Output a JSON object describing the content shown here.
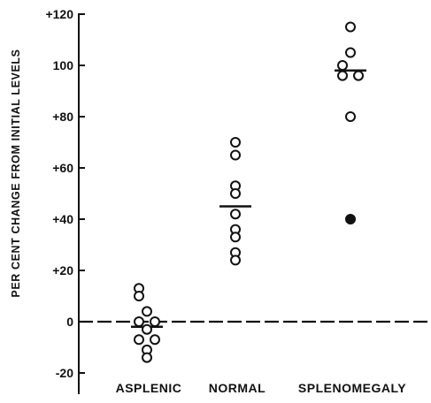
{
  "chart_data": {
    "type": "scatter",
    "title": "",
    "xlabel": "",
    "ylabel": "PER CENT CHANGE FROM INITIAL LEVELS",
    "ylim": [
      -27,
      120
    ],
    "yticks": [
      {
        "value": 120,
        "label": "+120"
      },
      {
        "value": 100,
        "label": "100"
      },
      {
        "value": 80,
        "label": "+80"
      },
      {
        "value": 60,
        "label": "+60"
      },
      {
        "value": 40,
        "label": "+40"
      },
      {
        "value": 20,
        "label": "+20"
      },
      {
        "value": 0,
        "label": "0"
      },
      {
        "value": -20,
        "label": "-20"
      }
    ],
    "categories": [
      "ASPLENIC",
      "NORMAL",
      "SPLENOMEGALY"
    ],
    "zero_line": "dashed",
    "grid": false,
    "groups": [
      {
        "category": "ASPLENIC",
        "mean": -2,
        "points": [
          {
            "x": -1,
            "y": 13
          },
          {
            "x": -1,
            "y": 10
          },
          {
            "x": 0,
            "y": 4
          },
          {
            "x": -1,
            "y": 0
          },
          {
            "x": 1,
            "y": 0
          },
          {
            "x": 0,
            "y": -3
          },
          {
            "x": -1,
            "y": -7
          },
          {
            "x": 1,
            "y": -7
          },
          {
            "x": 0,
            "y": -11
          },
          {
            "x": 0,
            "y": -14
          }
        ]
      },
      {
        "category": "NORMAL",
        "mean": 45,
        "points": [
          {
            "x": 0,
            "y": 70
          },
          {
            "x": 0,
            "y": 65
          },
          {
            "x": 0,
            "y": 53
          },
          {
            "x": 0,
            "y": 50
          },
          {
            "x": 0,
            "y": 42
          },
          {
            "x": 0,
            "y": 36
          },
          {
            "x": 0,
            "y": 33
          },
          {
            "x": 0,
            "y": 27
          },
          {
            "x": 0,
            "y": 24
          }
        ]
      },
      {
        "category": "SPLENOMEGALY",
        "mean": 98,
        "points": [
          {
            "x": 0,
            "y": 115
          },
          {
            "x": 0,
            "y": 105
          },
          {
            "x": -1,
            "y": 100
          },
          {
            "x": -1,
            "y": 96
          },
          {
            "x": 1,
            "y": 96
          },
          {
            "x": 0,
            "y": 80
          },
          {
            "x": 0,
            "y": 40,
            "filled": true
          }
        ]
      }
    ]
  }
}
